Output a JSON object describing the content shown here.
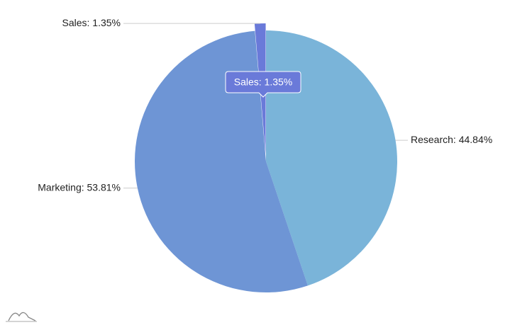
{
  "chart_data": {
    "type": "pie",
    "values": [
      44.84,
      53.81,
      1.35
    ],
    "value_labels": [
      "Research: 44.84%",
      "Marketing: 53.81%",
      "Sales: 1.35%"
    ],
    "colors": [
      "#7ab4d9",
      "#6e95d5",
      "#6a7ad9"
    ],
    "tooltip": {
      "index": 2
    }
  }
}
